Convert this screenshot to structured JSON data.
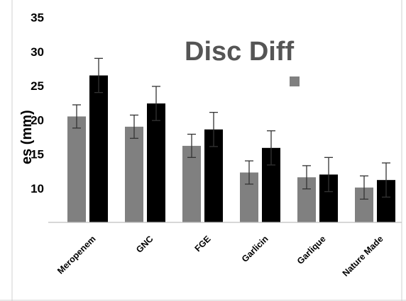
{
  "chart_data": {
    "type": "bar",
    "title": "Disc Diff",
    "ylabel": "es (mm)",
    "xlabel": "",
    "categories": [
      "Meropenem",
      "GNC",
      "FGE",
      "Garlicin",
      "Garlique",
      "Nature Made"
    ],
    "series": [
      {
        "color": "#808080",
        "values": [
          20.5,
          19.0,
          16.2,
          12.3,
          11.6,
          10.1
        ],
        "errors": [
          1.7,
          1.7,
          1.7,
          1.7,
          1.7,
          1.7
        ]
      },
      {
        "color": "#000000",
        "values": [
          26.5,
          22.4,
          18.6,
          15.9,
          12.0,
          11.2
        ],
        "errors": [
          2.5,
          2.5,
          2.5,
          2.5,
          2.5,
          2.5
        ]
      }
    ],
    "yticks": [
      "10",
      "15",
      "20",
      "25",
      "30",
      "35"
    ],
    "ylim": [
      5,
      35
    ],
    "grid": false,
    "legend_position": "top-right"
  }
}
